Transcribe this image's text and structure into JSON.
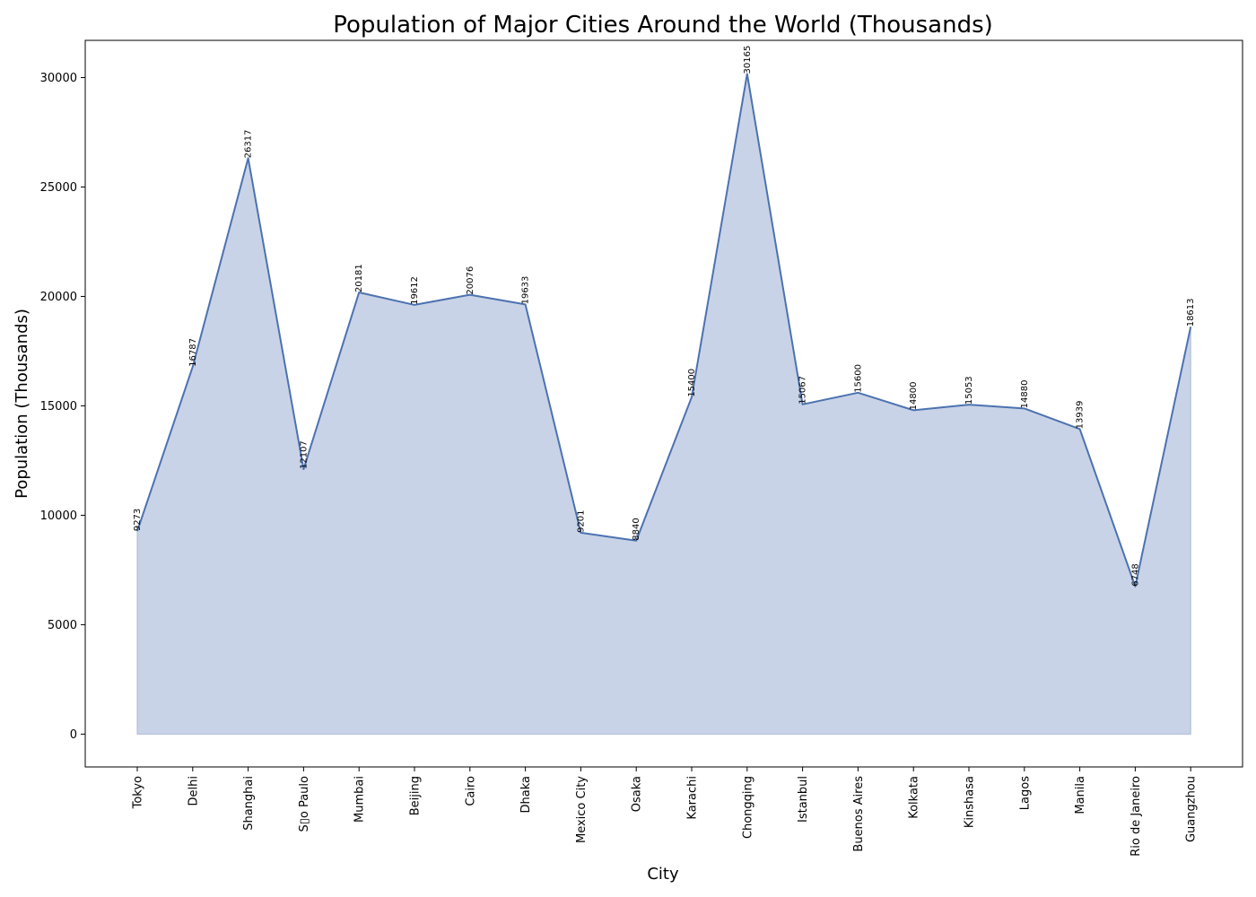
{
  "chart_data": {
    "type": "area",
    "title": "Population of Major Cities Around the World (Thousands)",
    "xlabel": "City",
    "ylabel": "Population (Thousands)",
    "categories": [
      "Tokyo",
      "Delhi",
      "Shanghai",
      "S▯o Paulo",
      "Mumbai",
      "Beijing",
      "Cairo",
      "Dhaka",
      "Mexico City",
      "Osaka",
      "Karachi",
      "Chongqing",
      "Istanbul",
      "Buenos Aires",
      "Kolkata",
      "Kinshasa",
      "Lagos",
      "Manila",
      "Rio de Janeiro",
      "Guangzhou"
    ],
    "values": [
      9273,
      16787,
      26317,
      12107,
      20181,
      19612,
      20076,
      19633,
      9201,
      8840,
      15400,
      30165,
      15067,
      15600,
      14800,
      15053,
      14880,
      13939,
      6748,
      18613
    ],
    "ylim": [
      -1500,
      31700
    ],
    "yticks": [
      0,
      5000,
      10000,
      15000,
      20000,
      25000,
      30000
    ],
    "grid": false,
    "legend": "none",
    "colors": {
      "line": "#4c72b0",
      "fill": "#c9d3e7",
      "fill_edge": "#a9b8d8"
    }
  }
}
